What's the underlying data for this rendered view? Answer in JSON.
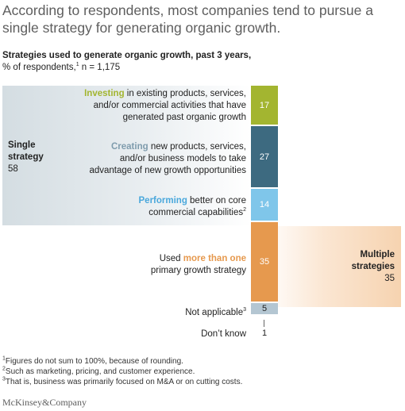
{
  "title": "According to respondents, most companies tend to pursue a single strategy for generating organic growth.",
  "subtitle_bold": "Strategies used to generate organic growth, past 3 years,",
  "subtitle_rest_a": "% of respondents,",
  "subtitle_rest_sup": "1",
  "subtitle_rest_b": " n = 1,175",
  "groups": {
    "single": {
      "name_line1": "Single",
      "name_line2": "strategy",
      "value": "58"
    },
    "multiple": {
      "name_line1": "Multiple",
      "name_line2": "strategies",
      "value": "35"
    }
  },
  "rows": {
    "investing": {
      "highlight": "Investing",
      "rest": " in existing products, services,",
      "line2": "and/or commercial activities that have",
      "line3": "generated past organic growth"
    },
    "creating": {
      "highlight": "Creating",
      "rest": " new products, services,",
      "line2": "and/or business models to take",
      "line3": "advantage of new growth opportunities"
    },
    "performing": {
      "highlight": "Performing",
      "rest": " better on core",
      "line2": "commercial capabilities",
      "line2_sup": "2"
    },
    "multiple": {
      "pre": "Used ",
      "highlight": "more than one",
      "line2": "primary growth strategy"
    },
    "not_applicable": {
      "label": "Not applicable",
      "sup": "3"
    },
    "dont_know": {
      "label": "Don’t know"
    }
  },
  "chart_data": {
    "type": "bar",
    "categories": [
      "Investing in existing products, services, and/or commercial activities that have generated past organic growth",
      "Creating new products, services, and/or business models to take advantage of new growth opportunities",
      "Performing better on core commercial capabilities",
      "Used more than one primary growth strategy",
      "Not applicable",
      "Don’t know"
    ],
    "values": [
      17,
      27,
      14,
      35,
      5,
      1
    ],
    "value_labels": [
      "17",
      "27",
      "14",
      "35",
      "5",
      "1"
    ],
    "colors": [
      "#a3b530",
      "#3d6a80",
      "#7fc6ea",
      "#e6994e",
      "#b4c6d2",
      "#666666"
    ],
    "highlight_colors": {
      "investing": "#a3b530",
      "creating": "#7f9cad",
      "performing": "#4aa8dc",
      "multiple": "#e6994e"
    },
    "groups": [
      {
        "name": "Single strategy",
        "value": 58
      },
      {
        "name": "Multiple strategies",
        "value": 35
      }
    ]
  },
  "footnotes": [
    {
      "sup": "1",
      "text": "Figures do not sum to 100%, because of rounding."
    },
    {
      "sup": "2",
      "text": "Such as marketing, pricing, and customer experience."
    },
    {
      "sup": "3",
      "text": "That is, business was primarily focused on M&A or on cutting costs."
    }
  ],
  "brand": "McKinsey&Company"
}
